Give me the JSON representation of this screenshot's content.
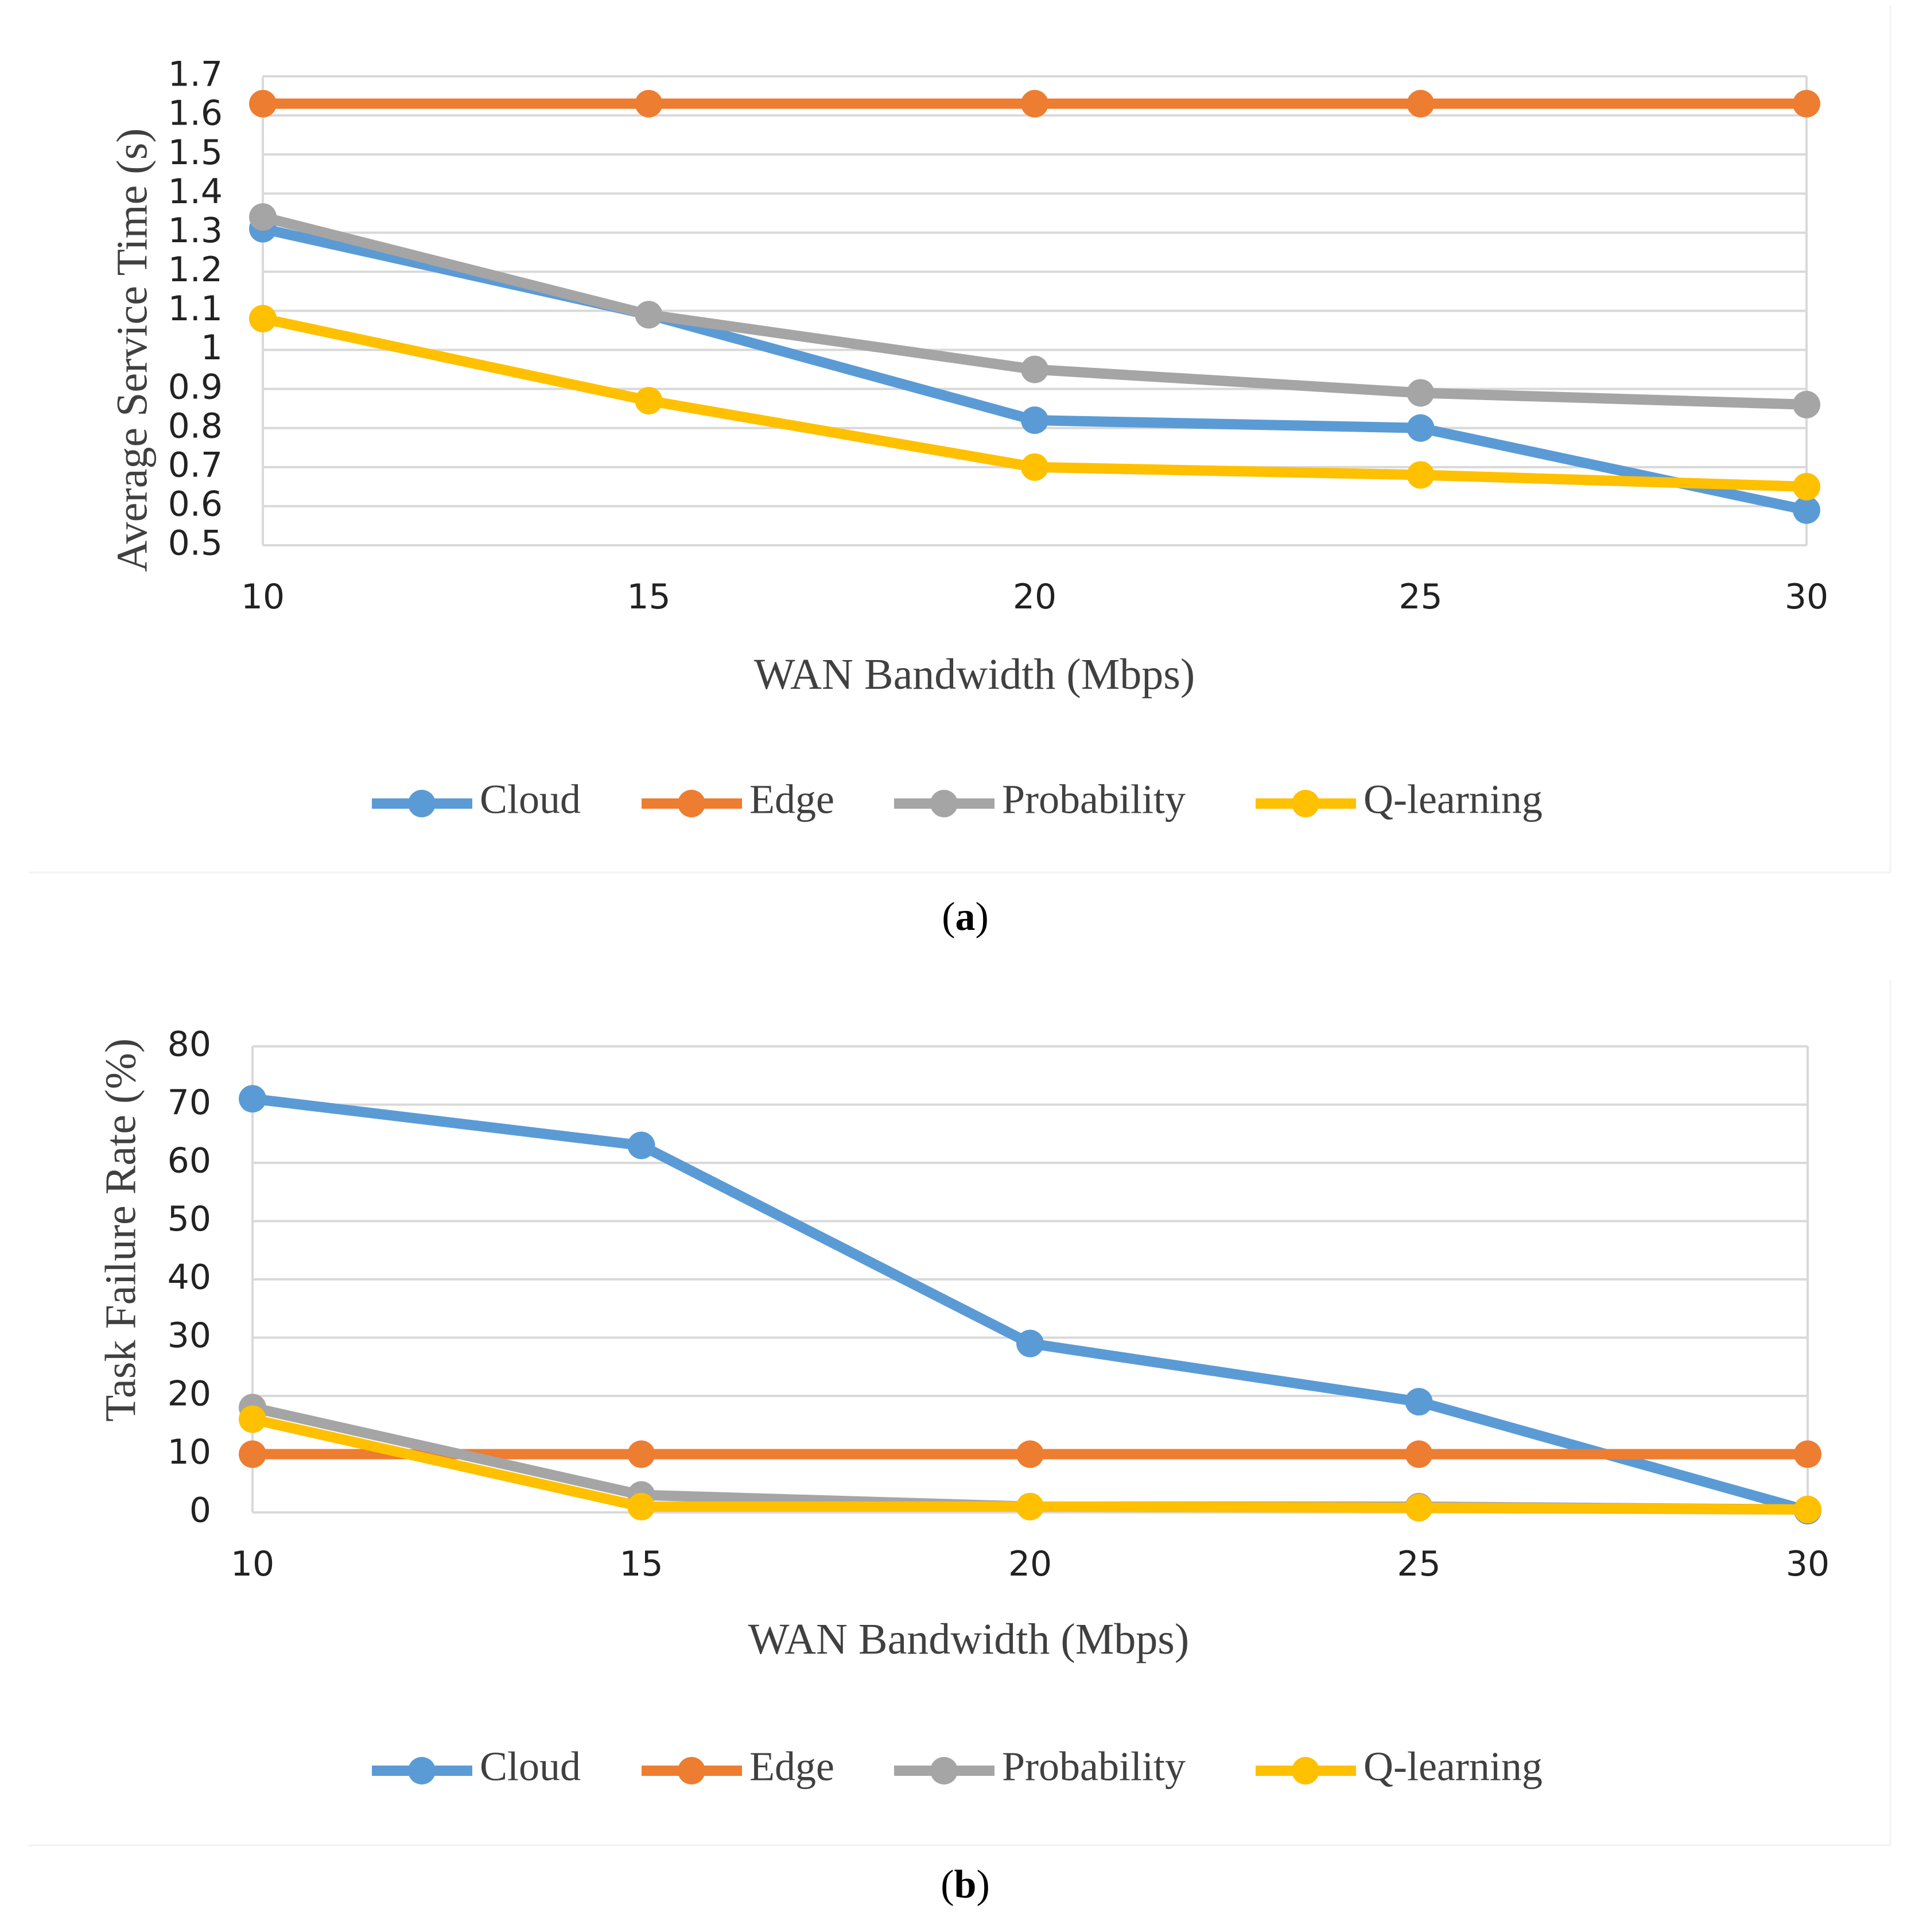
{
  "chart_data": [
    {
      "type": "line",
      "panel_label": "a",
      "xlabel": "WAN Bandwidth (Mbps)",
      "ylabel": "Average Service Time (s)",
      "categories": [
        "10",
        "15",
        "20",
        "25",
        "30"
      ],
      "yticks": [
        "0.5",
        "0.6",
        "0.7",
        "0.8",
        "0.9",
        "1",
        "1.1",
        "1.2",
        "1.3",
        "1.4",
        "1.5",
        "1.6",
        "1.7"
      ],
      "ylim": [
        0.5,
        1.7
      ],
      "series": [
        {
          "name": "Cloud",
          "color": "#5B9BD5",
          "values": [
            1.31,
            1.09,
            0.82,
            0.8,
            0.59
          ]
        },
        {
          "name": "Edge",
          "color": "#ED7D31",
          "values": [
            1.63,
            1.63,
            1.63,
            1.63,
            1.63
          ]
        },
        {
          "name": "Probability",
          "color": "#A5A5A5",
          "values": [
            1.34,
            1.09,
            0.95,
            0.89,
            0.86
          ]
        },
        {
          "name": "Q-learning",
          "color": "#FFC000",
          "values": [
            1.08,
            0.87,
            0.7,
            0.68,
            0.65
          ]
        }
      ],
      "legend_position": "bottom",
      "grid": true
    },
    {
      "type": "line",
      "panel_label": "b",
      "xlabel": "WAN Bandwidth (Mbps)",
      "ylabel": "Task Failure Rate (%)",
      "categories": [
        "10",
        "15",
        "20",
        "25",
        "30"
      ],
      "yticks": [
        "0",
        "10",
        "20",
        "30",
        "40",
        "50",
        "60",
        "70",
        "80"
      ],
      "ylim": [
        0,
        80
      ],
      "series": [
        {
          "name": "Cloud",
          "color": "#5B9BD5",
          "values": [
            71,
            63,
            29,
            19,
            0.3
          ]
        },
        {
          "name": "Edge",
          "color": "#ED7D31",
          "values": [
            10,
            10,
            10,
            10,
            10
          ]
        },
        {
          "name": "Probability",
          "color": "#A5A5A5",
          "values": [
            18,
            3,
            1,
            1,
            0.5
          ]
        },
        {
          "name": "Q-learning",
          "color": "#FFC000",
          "values": [
            16,
            1,
            1,
            0.8,
            0.5
          ]
        }
      ],
      "legend_position": "bottom",
      "grid": true
    }
  ]
}
